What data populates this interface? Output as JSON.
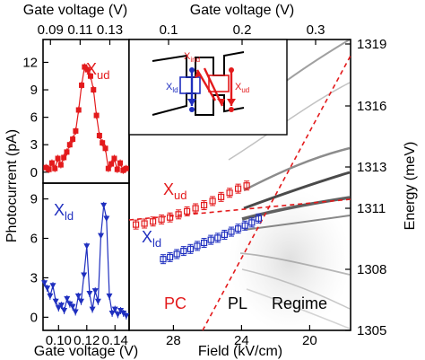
{
  "colors": {
    "red": "#e31a1c",
    "blue": "#1f2fbf",
    "grey": "#555555"
  },
  "labels": {
    "top_left_axis": "Gate voltage (V)",
    "top_right_axis": "Gate voltage (V)",
    "bottom_left_axis": "Gate voltage (V)",
    "bottom_right_axis": "Field (kV/cm)",
    "left_axis": "Photocurrent (pA)",
    "right_axis": "Energy (meV)",
    "x_ud": "X",
    "x_ud_sub": "ud",
    "x_ld": "X",
    "x_ld_sub": "ld",
    "x_ind": "X",
    "x_ind_sub": "ind",
    "inset_x_ud_sub": "ud",
    "inset_x_ld_sub": "ld",
    "pc": "PC",
    "pl": "PL",
    "regime": "Regime"
  },
  "chart_data": [
    {
      "type": "scatter",
      "panel": "photocurrent X_ud",
      "xlabel": "Gate voltage (V)",
      "ylabel": "Photocurrent (pA)",
      "xticks": [
        "0.09",
        "0.11",
        "0.13"
      ],
      "yticks": [
        "0",
        "3",
        "6",
        "9",
        "12"
      ],
      "xlim": [
        0.085,
        0.143
      ],
      "ylim": [
        -1.2,
        14.5
      ],
      "series": [
        {
          "name": "X_ud",
          "x": [
            0.087,
            0.089,
            0.091,
            0.093,
            0.095,
            0.097,
            0.099,
            0.101,
            0.103,
            0.105,
            0.107,
            0.109,
            0.111,
            0.113,
            0.115,
            0.117,
            0.119,
            0.121,
            0.123,
            0.125,
            0.127,
            0.129,
            0.131,
            0.133,
            0.135,
            0.137,
            0.139,
            0.141
          ],
          "y": [
            0.5,
            0.3,
            1.0,
            0.4,
            1.5,
            0.8,
            1.6,
            2.2,
            3.0,
            3.6,
            4.5,
            6.8,
            9.5,
            11.5,
            11.2,
            10.5,
            9.0,
            6.2,
            4.0,
            3.2,
            2.6,
            0.4,
            0.9,
            1.5,
            0.3,
            1.0,
            0.2,
            0.4
          ]
        }
      ]
    },
    {
      "type": "scatter",
      "panel": "photocurrent X_ld",
      "xlabel": "Gate voltage (V)",
      "ylabel": "Photocurrent (pA)",
      "xticks": [
        "0.10",
        "0.12",
        "0.14"
      ],
      "yticks": [
        "0",
        "3",
        "6",
        "9"
      ],
      "xlim": [
        0.089,
        0.15
      ],
      "ylim": [
        -1.0,
        10.2
      ],
      "series": [
        {
          "name": "X_ld",
          "x": [
            0.09,
            0.092,
            0.094,
            0.096,
            0.098,
            0.1,
            0.102,
            0.104,
            0.106,
            0.108,
            0.11,
            0.112,
            0.114,
            0.116,
            0.118,
            0.12,
            0.122,
            0.124,
            0.126,
            0.128,
            0.13,
            0.132,
            0.134,
            0.136,
            0.138,
            0.14,
            0.142,
            0.144,
            0.146,
            0.148
          ],
          "y": [
            2.6,
            2.2,
            1.6,
            2.4,
            1.2,
            0.7,
            0.9,
            0.5,
            1.4,
            1.0,
            0.8,
            0.4,
            1.6,
            1.2,
            3.2,
            5.4,
            1.8,
            0.6,
            2.0,
            1.2,
            6.2,
            8.5,
            7.5,
            1.6,
            0.3,
            0.6,
            0.2,
            0.5,
            0.3,
            0.1
          ]
        }
      ]
    },
    {
      "type": "scatter",
      "panel": "energy vs field",
      "xlabel": "Field (kV/cm)",
      "ylabel": "Energy (meV)",
      "top_xlabel": "Gate voltage (V)",
      "xticks": [
        "28",
        "24",
        "20"
      ],
      "top_xticks": [
        "0.1",
        "0.2",
        "0.3"
      ],
      "yticks": [
        "1305",
        "1308",
        "1311",
        "1313",
        "1316",
        "1319"
      ],
      "xlim": [
        30.6,
        17.6
      ],
      "ylim": [
        1305,
        1319.2
      ],
      "series": [
        {
          "name": "X_ud",
          "x": [
            30.2,
            29.7,
            29.2,
            28.7,
            28.2,
            27.7,
            27.2,
            26.7,
            26.2,
            25.7,
            25.2,
            24.7,
            24.2,
            23.7
          ],
          "y": [
            1310.2,
            1310.25,
            1310.35,
            1310.45,
            1310.55,
            1310.7,
            1310.85,
            1311.0,
            1311.15,
            1311.35,
            1311.55,
            1311.75,
            1311.95,
            1312.1
          ]
        },
        {
          "name": "X_ld",
          "x": [
            28.6,
            28.2,
            27.8,
            27.4,
            27.0,
            26.6,
            26.2,
            25.8,
            25.4,
            25.0,
            24.6,
            24.2,
            23.8,
            23.4,
            23.0
          ],
          "y": [
            1308.5,
            1308.6,
            1308.75,
            1308.9,
            1309.0,
            1309.15,
            1309.3,
            1309.45,
            1309.55,
            1309.7,
            1309.85,
            1310.0,
            1310.15,
            1310.3,
            1310.5
          ]
        }
      ]
    }
  ]
}
